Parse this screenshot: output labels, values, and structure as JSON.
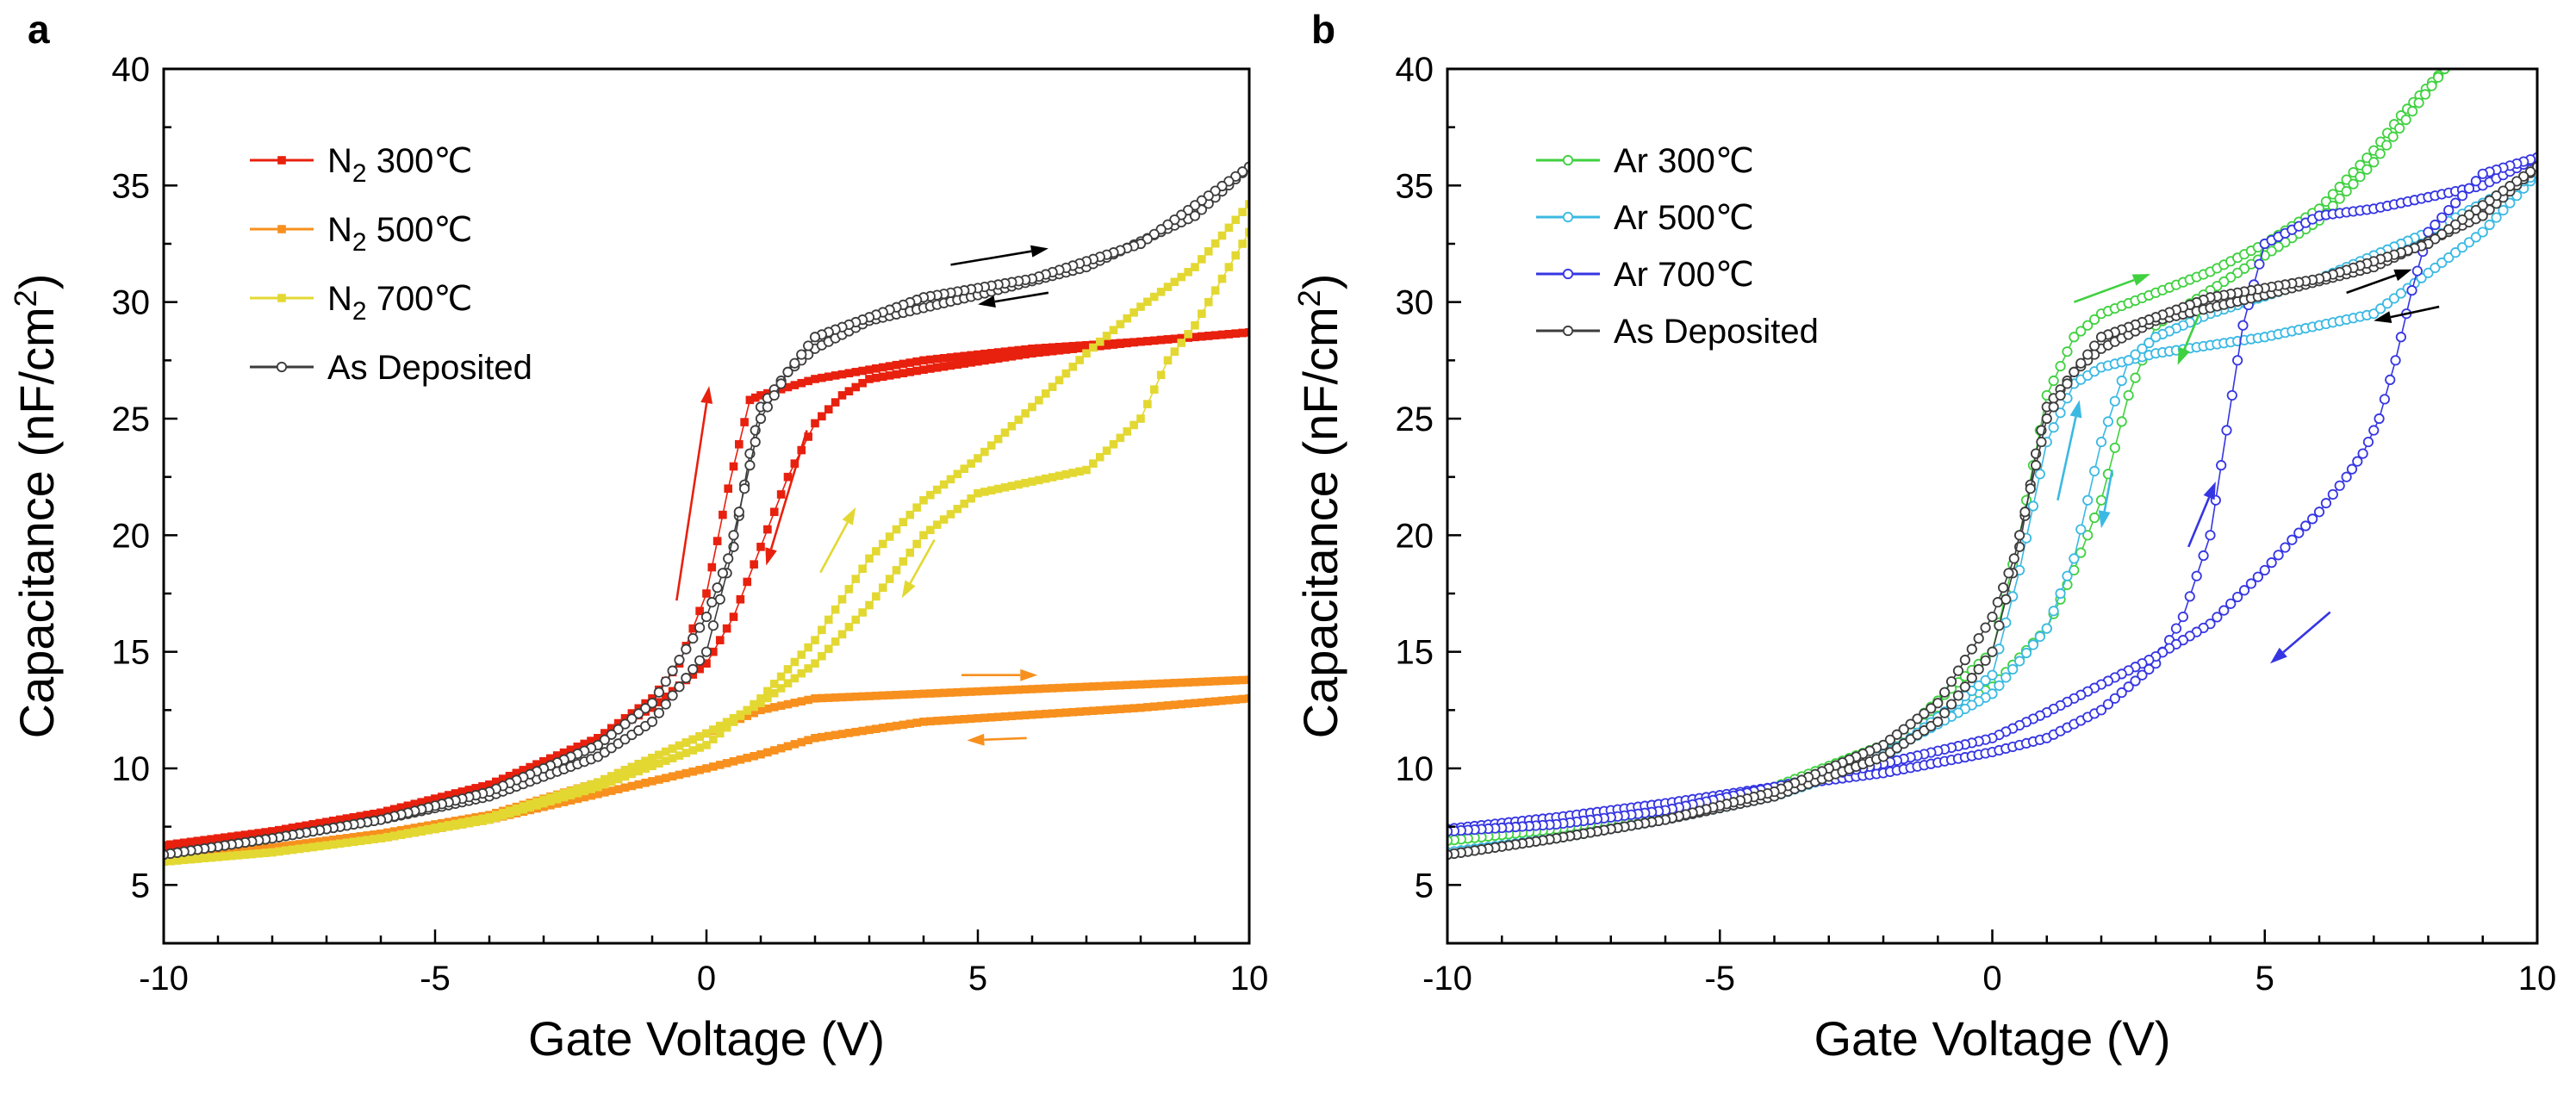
{
  "figure": {
    "panels": [
      "a",
      "b"
    ]
  },
  "chart_data": [
    {
      "panel": "a",
      "type": "line",
      "title": "",
      "xlabel": "Gate Voltage (V)",
      "ylabel": "Capacitance (nF/cm²)",
      "ylabel_parts": {
        "main": "Capacitance (nF/cm",
        "sup": "2",
        "end": ")"
      },
      "xlim": [
        -10,
        10
      ],
      "ylim": [
        2.5,
        40
      ],
      "xticks": [
        -10,
        -5,
        0,
        5,
        10
      ],
      "yticks": [
        5,
        10,
        15,
        20,
        25,
        30,
        35,
        40
      ],
      "grid": false,
      "legend_position": "top-left",
      "series": [
        {
          "name": "N₂ 300℃",
          "label_parts": {
            "main": "N",
            "sub": "2",
            "end": " 300℃"
          },
          "color": "#e8200e",
          "marker": "filled-square",
          "x_forward": [
            -10,
            -8,
            -6,
            -4,
            -2,
            -1,
            -0.5,
            0,
            0.4,
            0.8,
            1,
            2,
            4,
            6,
            8,
            10
          ],
          "y_forward": [
            6.7,
            7.3,
            8.1,
            9.3,
            11.3,
            13.0,
            14.5,
            17.5,
            22.0,
            25.8,
            26.0,
            26.7,
            27.5,
            28.0,
            28.3,
            28.7
          ],
          "x_reverse": [
            10,
            8,
            6,
            4,
            3,
            2.5,
            2,
            1.5,
            1,
            0.5,
            0,
            -1,
            -2,
            -4,
            -6,
            -8,
            -10
          ],
          "y_reverse": [
            28.7,
            28.3,
            27.8,
            27.1,
            26.7,
            26.0,
            24.8,
            22.5,
            19.5,
            16.5,
            14.5,
            12.6,
            11.3,
            9.3,
            8.1,
            7.3,
            6.6
          ]
        },
        {
          "name": "N₂ 500℃",
          "label_parts": {
            "main": "N",
            "sub": "2",
            "end": " 500℃"
          },
          "color": "#f7901e",
          "marker": "filled-square",
          "x_forward": [
            -10,
            -8,
            -6,
            -4,
            -2,
            0,
            1,
            2,
            3,
            5,
            7,
            10
          ],
          "y_forward": [
            6.2,
            6.6,
            7.2,
            8.0,
            9.4,
            11.5,
            12.5,
            13.0,
            13.1,
            13.3,
            13.5,
            13.8
          ],
          "x_reverse": [
            10,
            8,
            6,
            4,
            2,
            1,
            0,
            -2,
            -4,
            -6,
            -8,
            -10
          ],
          "y_reverse": [
            13.0,
            12.6,
            12.3,
            12.0,
            11.3,
            10.6,
            10.0,
            8.9,
            7.8,
            7.0,
            6.5,
            6.2
          ]
        },
        {
          "name": "N₂ 700℃",
          "label_parts": {
            "main": "N",
            "sub": "2",
            "end": " 700℃"
          },
          "color": "#e3d832",
          "marker": "filled-square",
          "x_forward": [
            -10,
            -8,
            -6,
            -4,
            -2,
            0,
            1,
            2,
            3,
            4,
            5,
            6,
            7,
            8,
            9,
            10
          ],
          "y_forward": [
            6.0,
            6.4,
            7.0,
            7.8,
            9.2,
            11.0,
            13.0,
            15.5,
            19.0,
            21.5,
            23.3,
            25.5,
            27.8,
            29.8,
            31.5,
            34.2
          ],
          "x_reverse": [
            10,
            9.5,
            9,
            8.5,
            8,
            7,
            6,
            5,
            4,
            3,
            2,
            1,
            0,
            -2,
            -4,
            -6,
            -8,
            -10
          ],
          "y_reverse": [
            33.0,
            31.0,
            29.0,
            27.5,
            25.0,
            22.8,
            22.3,
            21.8,
            20.0,
            17.0,
            14.5,
            12.8,
            11.5,
            9.4,
            7.9,
            7.0,
            6.4,
            6.0
          ]
        },
        {
          "name": "As Deposited",
          "label_parts": {
            "main": "As Deposited",
            "sub": "",
            "end": ""
          },
          "color": "#3c3c3c",
          "marker": "open-circle",
          "x_forward": [
            -10,
            -8,
            -6,
            -4,
            -2,
            -1,
            0,
            0.5,
            0.8,
            1,
            1.5,
            2,
            3,
            5,
            7,
            9,
            10
          ],
          "y_forward": [
            6.3,
            7.0,
            7.8,
            8.8,
            10.5,
            12.0,
            15.0,
            19.5,
            23.5,
            25.5,
            27.0,
            28.0,
            29.2,
            30.3,
            31.5,
            33.7,
            35.8
          ],
          "x_reverse": [
            10,
            8,
            6,
            4,
            2,
            1.5,
            1,
            0.7,
            0.4,
            0,
            -1,
            -2,
            -4,
            -6,
            -8,
            -10
          ],
          "y_reverse": [
            35.8,
            32.5,
            31.0,
            30.2,
            28.5,
            27.0,
            25.0,
            22.0,
            19.0,
            16.5,
            12.8,
            11.0,
            9.0,
            7.8,
            7.0,
            6.3
          ]
        }
      ],
      "annotations": {
        "arrows": [
          {
            "color": "#e8200e",
            "from": [
              -0.55,
              17.2
            ],
            "to": [
              0.05,
              26.4
            ]
          },
          {
            "color": "#e8200e",
            "from": [
              1.85,
              24.5
            ],
            "to": [
              1.1,
              18.7
            ]
          },
          {
            "color": "#000000",
            "from": [
              4.5,
              31.6
            ],
            "to": [
              6.3,
              32.3
            ]
          },
          {
            "color": "#000000",
            "from": [
              6.3,
              30.4
            ],
            "to": [
              5.0,
              29.9
            ]
          },
          {
            "color": "#e3d832",
            "from": [
              2.1,
              18.4
            ],
            "to": [
              2.75,
              21.2
            ]
          },
          {
            "color": "#e3d832",
            "from": [
              4.2,
              19.8
            ],
            "to": [
              3.6,
              17.3
            ]
          },
          {
            "color": "#f7901e",
            "from": [
              4.7,
              14.0
            ],
            "to": [
              6.1,
              14.0
            ]
          },
          {
            "color": "#f7901e",
            "from": [
              5.9,
              11.3
            ],
            "to": [
              4.8,
              11.2
            ]
          }
        ]
      }
    },
    {
      "panel": "b",
      "type": "line",
      "title": "",
      "xlabel": "Gate Voltage (V)",
      "ylabel": "Capacitance (nF/cm²)",
      "ylabel_parts": {
        "main": "Capacitance (nF/cm",
        "sup": "2",
        "end": ")"
      },
      "xlim": [
        -10,
        10
      ],
      "ylim": [
        2.5,
        40
      ],
      "xticks": [
        -10,
        -5,
        0,
        5,
        10
      ],
      "yticks": [
        5,
        10,
        15,
        20,
        25,
        30,
        35,
        40
      ],
      "grid": false,
      "legend_position": "top-left",
      "series": [
        {
          "name": "Ar 300℃",
          "label_parts": {
            "main": "Ar 300℃",
            "sub": "",
            "end": ""
          },
          "color": "#3fd13f",
          "marker": "open-circle",
          "x_forward": [
            -10,
            -8,
            -6,
            -4,
            -2,
            0,
            0.5,
            1,
            1.5,
            2,
            3,
            4,
            5,
            6,
            7,
            7.5,
            8.3
          ],
          "y_forward": [
            6.9,
            7.4,
            8.1,
            9.2,
            10.8,
            15.0,
            20.0,
            26.0,
            28.5,
            29.5,
            30.4,
            31.3,
            32.5,
            34.0,
            36.5,
            38.0,
            40.0
          ],
          "x_reverse": [
            8.3,
            7,
            6,
            5,
            4,
            3,
            2.5,
            2,
            1.5,
            1,
            0,
            -2,
            -4,
            -6,
            -8,
            -10
          ],
          "y_reverse": [
            40.0,
            36.0,
            33.5,
            32.0,
            30.5,
            29.0,
            26.0,
            21.5,
            18.5,
            16.0,
            13.5,
            11.0,
            9.2,
            8.1,
            7.4,
            6.9
          ]
        },
        {
          "name": "Ar 500℃",
          "label_parts": {
            "main": "Ar 500℃",
            "sub": "",
            "end": ""
          },
          "color": "#3bb9e3",
          "marker": "open-circle",
          "x_forward": [
            -10,
            -8,
            -6,
            -4,
            -2,
            0,
            0.5,
            1,
            1.5,
            2,
            3,
            5,
            7,
            9,
            10
          ],
          "y_forward": [
            6.4,
            7.0,
            7.8,
            8.8,
            10.4,
            14.0,
            18.5,
            24.0,
            26.5,
            27.2,
            27.8,
            28.5,
            29.5,
            33.0,
            35.5
          ],
          "x_reverse": [
            10,
            8,
            6,
            4,
            3,
            2.5,
            2,
            1.5,
            1,
            0,
            -2,
            -4,
            -6,
            -8,
            -10
          ],
          "y_reverse": [
            35.5,
            33.0,
            31.0,
            29.5,
            28.5,
            27.5,
            24.0,
            19.0,
            16.0,
            13.2,
            10.6,
            9.0,
            7.8,
            7.0,
            6.4
          ]
        },
        {
          "name": "Ar 700℃",
          "label_parts": {
            "main": "Ar 700℃",
            "sub": "",
            "end": ""
          },
          "color": "#3535e3",
          "marker": "open-circle",
          "x_forward": [
            -10,
            -8,
            -6,
            -4,
            -2,
            0,
            1,
            2,
            3,
            3.5,
            4,
            4.3,
            4.6,
            5,
            6,
            7,
            8,
            9,
            10
          ],
          "y_forward": [
            7.4,
            7.9,
            8.5,
            9.2,
            9.8,
            10.7,
            11.3,
            12.5,
            14.5,
            16.5,
            20.0,
            24.5,
            29.0,
            32.5,
            33.7,
            34.0,
            34.5,
            35.0,
            36.2
          ],
          "x_reverse": [
            10,
            9,
            8,
            7.7,
            7.4,
            7.1,
            6.8,
            6.5,
            6,
            5.5,
            5,
            4,
            3,
            2,
            1,
            0,
            -2,
            -4,
            -6,
            -8,
            -10
          ],
          "y_reverse": [
            36.2,
            35.5,
            33.0,
            30.5,
            27.5,
            25.0,
            23.5,
            22.5,
            21.0,
            19.8,
            18.5,
            16.2,
            14.8,
            13.6,
            12.4,
            11.3,
            10.2,
            9.2,
            8.2,
            7.6,
            7.3
          ]
        },
        {
          "name": "As Deposited",
          "label_parts": {
            "main": "As Deposited",
            "sub": "",
            "end": ""
          },
          "color": "#3c3c3c",
          "marker": "open-circle",
          "x_forward": [
            -10,
            -8,
            -6,
            -4,
            -2,
            -1,
            0,
            0.5,
            0.8,
            1,
            1.5,
            2,
            3,
            5,
            7,
            9,
            10
          ],
          "y_forward": [
            6.3,
            7.0,
            7.8,
            8.8,
            10.5,
            12.0,
            15.0,
            19.5,
            23.5,
            25.5,
            27.0,
            28.0,
            29.2,
            30.3,
            31.5,
            33.7,
            35.8
          ],
          "x_reverse": [
            10,
            8,
            6,
            4,
            2,
            1.5,
            1,
            0.7,
            0.4,
            0,
            -1,
            -2,
            -4,
            -6,
            -8,
            -10
          ],
          "y_reverse": [
            35.8,
            32.5,
            31.0,
            30.2,
            28.5,
            27.0,
            25.0,
            22.0,
            19.0,
            16.5,
            12.8,
            11.0,
            9.0,
            7.8,
            7.0,
            6.3
          ]
        }
      ],
      "annotations": {
        "arrows": [
          {
            "color": "#3fd13f",
            "from": [
              1.5,
              30.0
            ],
            "to": [
              2.9,
              31.2
            ]
          },
          {
            "color": "#3fd13f",
            "from": [
              3.8,
              29.5
            ],
            "to": [
              3.4,
              27.3
            ]
          },
          {
            "color": "#3bb9e3",
            "from": [
              1.2,
              21.5
            ],
            "to": [
              1.6,
              25.8
            ]
          },
          {
            "color": "#3bb9e3",
            "from": [
              2.2,
              22.8
            ],
            "to": [
              2.0,
              20.3
            ]
          },
          {
            "color": "#000000",
            "from": [
              6.5,
              30.4
            ],
            "to": [
              7.7,
              31.4
            ]
          },
          {
            "color": "#000000",
            "from": [
              8.2,
              29.8
            ],
            "to": [
              7.0,
              29.2
            ]
          },
          {
            "color": "#3535e3",
            "from": [
              3.6,
              19.5
            ],
            "to": [
              4.1,
              22.3
            ]
          },
          {
            "color": "#3535e3",
            "from": [
              6.2,
              16.7
            ],
            "to": [
              5.1,
              14.5
            ]
          }
        ]
      }
    }
  ]
}
